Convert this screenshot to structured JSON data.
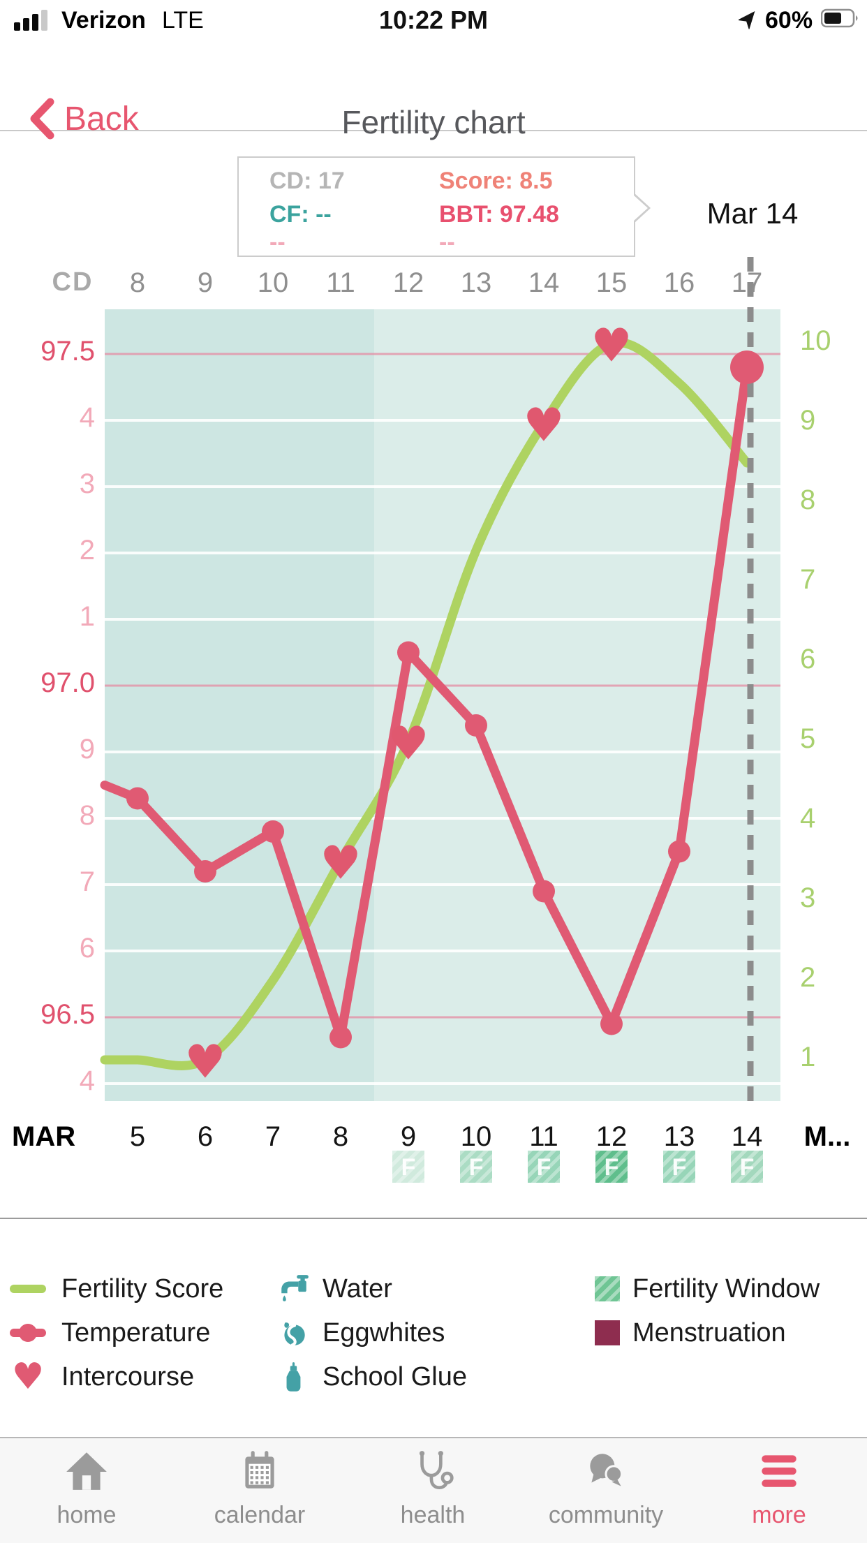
{
  "status_bar": {
    "carrier": "Verizon",
    "network": "LTE",
    "time": "10:22 PM",
    "battery_percent": "60%"
  },
  "nav_bar": {
    "back_label": "Back",
    "title": "Fertility chart"
  },
  "tooltip": {
    "cd": "CD: 17",
    "score": "Score: 8.5",
    "cf": "CF: --",
    "bbt": "BBT: 97.48",
    "left_empty": "--",
    "right_empty": "--"
  },
  "annotation": {
    "selected_date": "Mar 14"
  },
  "chart_data": {
    "type": "line",
    "title": "Fertility chart",
    "cd_axis": {
      "header": "CD",
      "labels": [
        8,
        9,
        10,
        11,
        12,
        13,
        14,
        15,
        16,
        17
      ]
    },
    "date_axis": {
      "month": "MAR",
      "labels": [
        5,
        6,
        7,
        8,
        9,
        10,
        11,
        12,
        13,
        14
      ],
      "next_month": "M..."
    },
    "left_axis": {
      "ticks": [
        {
          "label": "97.5",
          "value": 97.5,
          "major": true
        },
        {
          "label": "4",
          "value": 97.4,
          "major": false
        },
        {
          "label": "3",
          "value": 97.3,
          "major": false
        },
        {
          "label": "2",
          "value": 97.2,
          "major": false
        },
        {
          "label": "1",
          "value": 97.1,
          "major": false
        },
        {
          "label": "97.0",
          "value": 97.0,
          "major": true
        },
        {
          "label": "9",
          "value": 96.9,
          "major": false
        },
        {
          "label": "8",
          "value": 96.8,
          "major": false
        },
        {
          "label": "7",
          "value": 96.7,
          "major": false
        },
        {
          "label": "6",
          "value": 96.6,
          "major": false
        },
        {
          "label": "96.5",
          "value": 96.5,
          "major": true
        },
        {
          "label": "4",
          "value": 96.4,
          "major": false
        }
      ],
      "range": [
        96.36,
        97.57
      ]
    },
    "right_axis": {
      "labels": [
        10,
        9,
        8,
        7,
        6,
        5,
        4,
        3,
        2,
        1
      ],
      "min": 1,
      "max": 10
    },
    "series": [
      {
        "name": "Fertility Score",
        "axis": "score",
        "color": "#aed361",
        "smooth": true,
        "lead_in": 1,
        "values": [
          1,
          1,
          2,
          3.5,
          5,
          7.4,
          9,
          10,
          9.5,
          8.5
        ]
      },
      {
        "name": "Temperature",
        "axis": "temp",
        "color": "#e05a73",
        "smooth": false,
        "lead_in": 96.85,
        "values": [
          96.83,
          96.72,
          96.78,
          96.47,
          97.05,
          96.94,
          96.69,
          96.49,
          96.75,
          97.48
        ]
      }
    ],
    "intercourse_hearts": [
      {
        "date": 6,
        "score": 1
      },
      {
        "date": 8,
        "score": 3.5
      },
      {
        "date": 9,
        "score": 5
      },
      {
        "date": 11,
        "score": 9
      },
      {
        "date": 12,
        "score": 10
      }
    ],
    "fertile_window": {
      "badges": [
        {
          "date": 9,
          "label": "F",
          "color": "#d0eadd"
        },
        {
          "date": 10,
          "label": "F",
          "color": "#abdcc4"
        },
        {
          "date": 11,
          "label": "F",
          "color": "#97d5b8"
        },
        {
          "date": 12,
          "label": "F",
          "color": "#5fbe8c"
        },
        {
          "date": 13,
          "label": "F",
          "color": "#97d5b8"
        },
        {
          "date": 14,
          "label": "F",
          "color": "#a3d8bd"
        }
      ]
    },
    "selected": {
      "cd": 17,
      "date": "Mar 14",
      "score": 8.5,
      "bbt": 97.48
    },
    "colors": {
      "plot_bg_left": "#cde6e2",
      "plot_bg_right": "#dbede9",
      "major_grid": "#e491a6",
      "minor_grid": "#ffffff",
      "dashed_line": "#8c8c8c"
    }
  },
  "legend": {
    "items": [
      {
        "label": "Fertility Score",
        "icon": "green-line-swatch",
        "color": "#aed361"
      },
      {
        "label": "Temperature",
        "icon": "pink-line-dot-swatch",
        "color": "#e05a73"
      },
      {
        "label": "Intercourse",
        "icon": "heart-icon",
        "color": "#e05a73"
      },
      {
        "label": "Water",
        "icon": "faucet-icon",
        "color": "#44a1a6"
      },
      {
        "label": "Eggwhites",
        "icon": "eggwhites-icon",
        "color": "#44a1a6"
      },
      {
        "label": "School Glue",
        "icon": "glue-bottle-icon",
        "color": "#44a1a6"
      },
      {
        "label": "Fertility Window",
        "icon": "striped-square",
        "color": "#6fc594"
      },
      {
        "label": "Menstruation",
        "icon": "solid-square",
        "color": "#8e2d4f"
      }
    ]
  },
  "tab_bar": {
    "active": "more",
    "active_color": "#e7566f",
    "inactive_color": "#9b9b9b",
    "items": [
      {
        "label": "home",
        "icon": "home-icon"
      },
      {
        "label": "calendar",
        "icon": "calendar-icon"
      },
      {
        "label": "health",
        "icon": "health-icon"
      },
      {
        "label": "community",
        "icon": "community-icon"
      },
      {
        "label": "more",
        "icon": "more-icon"
      }
    ]
  }
}
